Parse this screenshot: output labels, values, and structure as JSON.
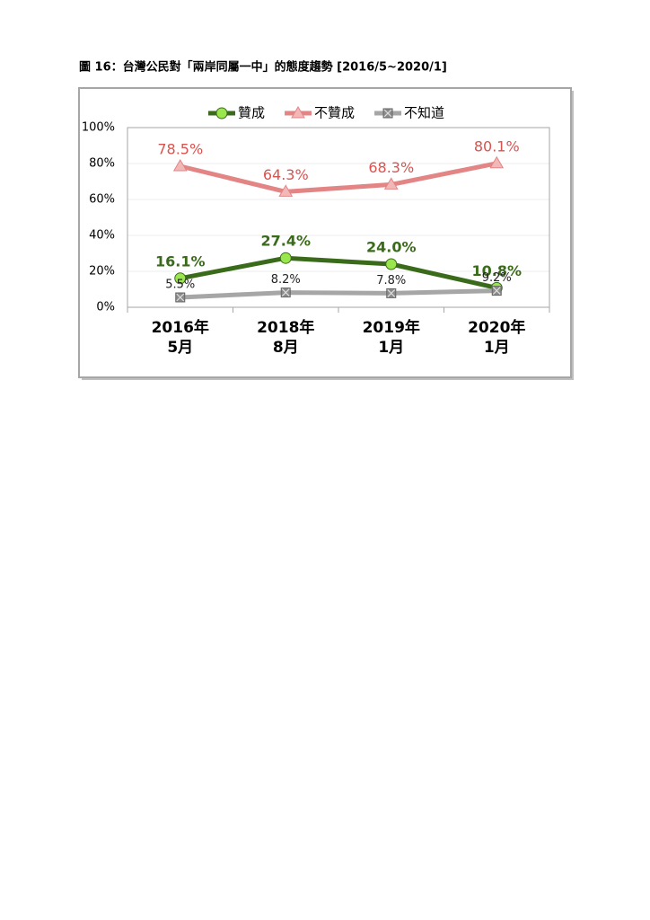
{
  "chart_data": {
    "type": "line",
    "title": "圖 16：台灣公民對「兩岸同屬一中」的態度趨勢 [2016/5~2020/1]",
    "categories": [
      "2016年\n5月",
      "2018年\n8月",
      "2019年\n1月",
      "2020年\n1月"
    ],
    "series": [
      {
        "name": "贊成",
        "color": "#3a6b1a",
        "marker": "circle",
        "marker_color": "#99e64d",
        "label_color": "#3a6b1a",
        "values": [
          16.1,
          27.4,
          24.0,
          10.8
        ],
        "value_labels": [
          "16.1%",
          "27.4%",
          "24.0%",
          "10.8%"
        ]
      },
      {
        "name": "不贊成",
        "color": "#e38585",
        "marker": "triangle",
        "marker_color": "#f2b8b8",
        "label_color": "#d9534f",
        "values": [
          78.5,
          64.3,
          68.3,
          80.1
        ],
        "value_labels": [
          "78.5%",
          "64.3%",
          "68.3%",
          "80.1%"
        ]
      },
      {
        "name": "不知道",
        "color": "#a6a6a6",
        "marker": "xsquare",
        "marker_color": "#8c8c8c",
        "label_color": "#222222",
        "values": [
          5.5,
          8.2,
          7.8,
          9.2
        ],
        "value_labels": [
          "5.5%",
          "8.2%",
          "7.8%",
          "9.2%"
        ]
      }
    ],
    "ylim": [
      0,
      100
    ],
    "yticks": [
      {
        "value": 0,
        "label": "0%"
      },
      {
        "value": 20,
        "label": "20%"
      },
      {
        "value": 40,
        "label": "40%"
      },
      {
        "value": 60,
        "label": "60%"
      },
      {
        "value": 80,
        "label": "80%"
      },
      {
        "value": 100,
        "label": "100%"
      }
    ],
    "grid": true,
    "legend": "top"
  }
}
